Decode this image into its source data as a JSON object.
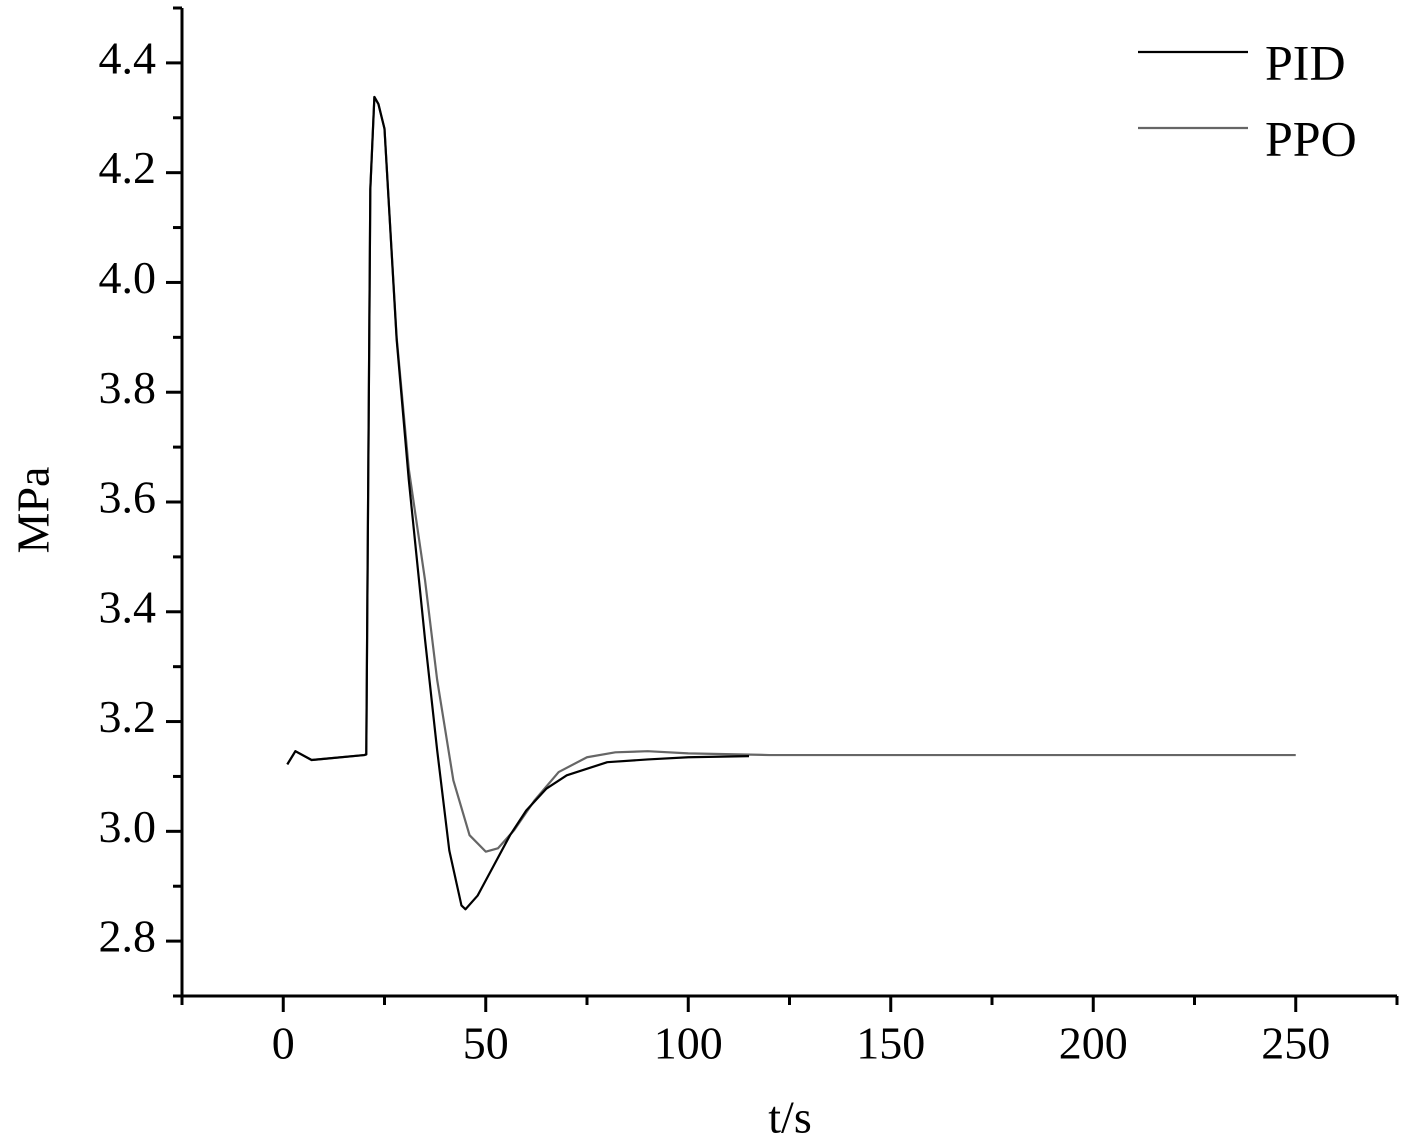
{
  "chart_data": {
    "type": "line",
    "xlabel": "t/s",
    "ylabel": "MPa",
    "xlim": [
      -25,
      275
    ],
    "ylim": [
      2.7,
      4.5
    ],
    "xticks": [
      0,
      50,
      100,
      150,
      200,
      250
    ],
    "yticks": [
      {
        "value": 2.8,
        "label": "2.8"
      },
      {
        "value": 3.0,
        "label": "3.0"
      },
      {
        "value": 3.2,
        "label": "3.2"
      },
      {
        "value": 3.4,
        "label": "3.4"
      },
      {
        "value": 3.6,
        "label": "3.6"
      },
      {
        "value": 3.8,
        "label": "3.8"
      },
      {
        "value": 4.0,
        "label": "4.0"
      },
      {
        "value": 4.2,
        "label": "4.2"
      },
      {
        "value": 4.4,
        "label": "4.4"
      }
    ],
    "xminor_ticks": [
      -25,
      25,
      75,
      125,
      175,
      225,
      275
    ],
    "yminor_ticks": [
      2.7,
      2.9,
      3.1,
      3.3,
      3.5,
      3.7,
      3.9,
      4.1,
      4.3,
      4.5
    ],
    "legend": "upper right",
    "series": [
      {
        "name": "PID",
        "color": "#000000",
        "x": [
          1,
          3,
          7,
          10,
          20,
          20.5,
          21,
          21.5,
          22.5,
          23.5,
          25,
          28,
          31,
          35,
          38,
          41,
          44,
          45,
          48,
          52,
          56,
          60,
          65,
          70,
          80,
          90,
          100,
          115
        ],
        "values": [
          3.122,
          3.146,
          3.13,
          3.132,
          3.139,
          3.14,
          3.659,
          4.17,
          4.338,
          4.325,
          4.28,
          3.896,
          3.64,
          3.35,
          3.148,
          2.965,
          2.865,
          2.858,
          2.883,
          2.938,
          2.993,
          3.038,
          3.078,
          3.102,
          3.126,
          3.131,
          3.135,
          3.137
        ]
      },
      {
        "name": "PPO",
        "color": "#666666",
        "x": [
          1,
          3,
          7,
          10,
          20,
          20.5,
          21,
          21.5,
          22.5,
          23.5,
          25,
          28,
          31,
          35,
          38,
          42,
          46,
          50,
          53,
          57,
          62,
          68,
          75,
          82,
          90,
          100,
          120,
          250
        ],
        "values": [
          3.122,
          3.146,
          3.13,
          3.132,
          3.139,
          3.14,
          3.659,
          4.17,
          4.338,
          4.325,
          4.28,
          3.9,
          3.66,
          3.458,
          3.276,
          3.093,
          2.993,
          2.963,
          2.969,
          3.002,
          3.056,
          3.108,
          3.135,
          3.144,
          3.146,
          3.142,
          3.139,
          3.139
        ]
      }
    ]
  }
}
